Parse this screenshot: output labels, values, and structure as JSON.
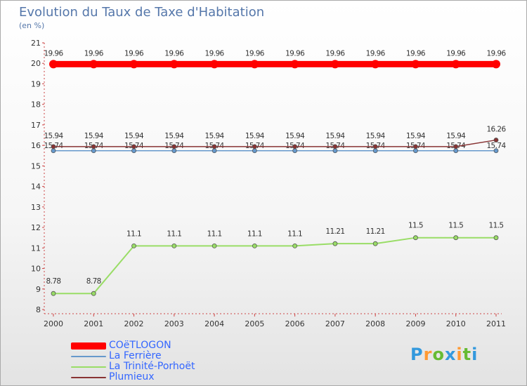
{
  "title": "Evolution du Taux de Taxe d'Habitation",
  "subtitle": "(en %)",
  "chart_data": {
    "type": "line",
    "title": "Evolution du Taux de Taxe d'Habitation",
    "ylabel": "(en %)",
    "xlabel": "",
    "categories": [
      "2000",
      "2001",
      "2002",
      "2003",
      "2004",
      "2005",
      "2006",
      "2007",
      "2008",
      "2009",
      "2010",
      "2011"
    ],
    "yticks": [
      "8",
      "9",
      "10",
      "11",
      "12",
      "13",
      "14",
      "15",
      "16",
      "17",
      "18",
      "19",
      "20",
      "21"
    ],
    "ylim": [
      8,
      21
    ],
    "grid": false,
    "legend": "bottom-left",
    "series": [
      {
        "name": "COëTLOGON",
        "color": "#ff0000",
        "values": [
          19.96,
          19.96,
          19.96,
          19.96,
          19.96,
          19.96,
          19.96,
          19.96,
          19.96,
          19.96,
          19.96,
          19.96
        ],
        "labels": [
          "19.96",
          "19.96",
          "19.96",
          "19.96",
          "19.96",
          "19.96",
          "19.96",
          "19.96",
          "19.96",
          "19.96",
          "19.96",
          "19.96"
        ]
      },
      {
        "name": "La Ferrière",
        "color": "#6699cc",
        "values": [
          15.74,
          15.74,
          15.74,
          15.74,
          15.74,
          15.74,
          15.74,
          15.74,
          15.74,
          15.74,
          15.74,
          15.74
        ],
        "labels": [
          "15.74",
          "15.74",
          "15.74",
          "15.74",
          "15.74",
          "15.74",
          "15.74",
          "15.74",
          "15.74",
          "15.74",
          "15.74",
          "15.74"
        ]
      },
      {
        "name": "La Trinité-Porhoët",
        "color": "#99dd66",
        "values": [
          8.78,
          8.78,
          11.1,
          11.1,
          11.1,
          11.1,
          11.1,
          11.21,
          11.21,
          11.5,
          11.5,
          11.5
        ],
        "labels": [
          "8.78",
          "8.78",
          "11.1",
          "11.1",
          "11.1",
          "11.1",
          "11.1",
          "11.21",
          "11.21",
          "11.5",
          "11.5",
          "11.5"
        ]
      },
      {
        "name": "Plumieux",
        "color": "#883333",
        "values": [
          15.94,
          15.94,
          15.94,
          15.94,
          15.94,
          15.94,
          15.94,
          15.94,
          15.94,
          15.94,
          15.94,
          16.26
        ],
        "labels": [
          "15.94",
          "15.94",
          "15.94",
          "15.94",
          "15.94",
          "15.94",
          "15.94",
          "15.94",
          "15.94",
          "15.94",
          "15.94",
          "16.26"
        ]
      }
    ]
  },
  "logo": {
    "letters": [
      "P",
      "r",
      "o",
      "x",
      "i",
      "t",
      "i"
    ],
    "colors": [
      "#3399dd",
      "#ff9933",
      "#66bb33",
      "#3399dd",
      "#ff9933",
      "#66bb33",
      "#3399dd"
    ]
  }
}
